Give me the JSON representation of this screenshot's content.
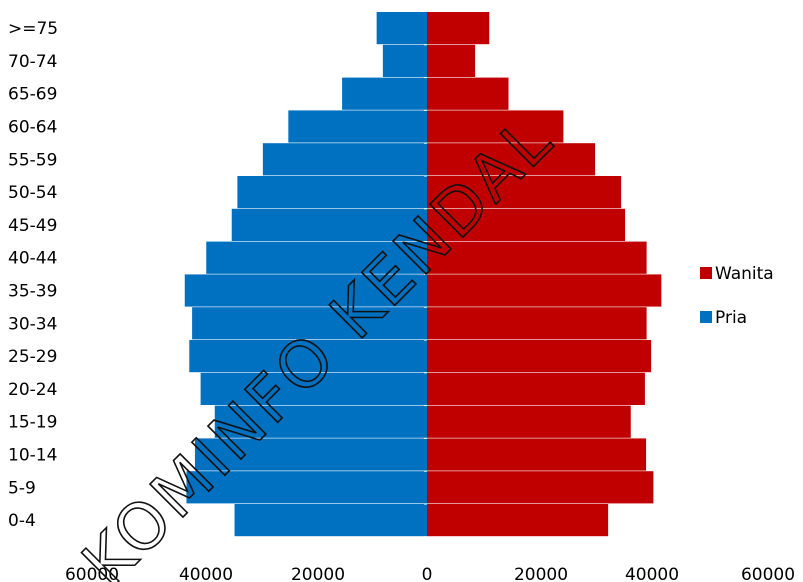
{
  "chart_data": {
    "type": "bar",
    "orientation": "horizontal-population-pyramid",
    "categories": [
      "0-4",
      "5-9",
      "10-14",
      "15-19",
      "20-24",
      "25-29",
      "30-34",
      "35-39",
      "40-44",
      "45-49",
      "50-54",
      "55-59",
      "60-64",
      "65-69",
      "70-74",
      ">=75"
    ],
    "series": [
      {
        "name": "Pria",
        "color": "#0070C0",
        "values": [
          34000,
          42500,
          41000,
          37500,
          40000,
          42000,
          41500,
          42800,
          39000,
          34500,
          33500,
          29000,
          24500,
          15000,
          7800,
          8900
        ]
      },
      {
        "name": "Wanita",
        "color": "#C00000",
        "values": [
          32000,
          40000,
          38700,
          36000,
          38500,
          39600,
          38800,
          41400,
          38800,
          35000,
          34300,
          29700,
          24100,
          14400,
          8500,
          11000
        ]
      }
    ],
    "xlim": [
      -60000,
      60000
    ],
    "x_ticks": [
      "60000",
      "40000",
      "20000",
      "0",
      "20000",
      "40000",
      "60000"
    ],
    "legend": {
      "placement": "right",
      "items": [
        "Wanita",
        "Pria"
      ]
    },
    "grid": false,
    "watermark": "KOMINFO KENDAL"
  }
}
